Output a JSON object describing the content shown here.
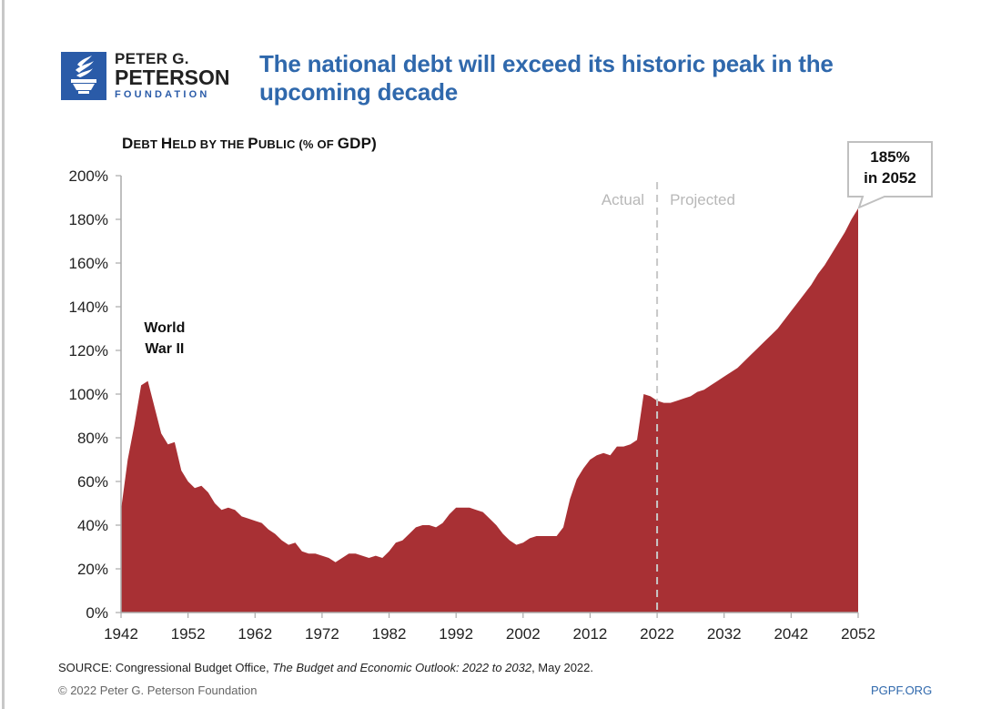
{
  "logo": {
    "line1": "PETER G.",
    "line2": "PETERSON",
    "line3": "FOUNDATION",
    "icon": "torch-icon",
    "color": "#2a5ba8"
  },
  "title": "The national debt will exceed its historic peak in the upcoming decade",
  "subtitle": {
    "parts": [
      {
        "text": "D",
        "small": false
      },
      {
        "text": "EBT ",
        "small": true
      },
      {
        "text": "H",
        "small": false
      },
      {
        "text": "ELD BY THE ",
        "small": true
      },
      {
        "text": "P",
        "small": false
      },
      {
        "text": "UBLIC (% OF ",
        "small": true
      },
      {
        "text": "GDP)",
        "small": false
      }
    ]
  },
  "chart_data": {
    "type": "area",
    "title": "Debt Held by the Public (% of GDP)",
    "xlabel": "",
    "ylabel": "",
    "xlim": [
      1942,
      2052
    ],
    "ylim": [
      0,
      200
    ],
    "xticks": [
      "1942",
      "1952",
      "1962",
      "1972",
      "1982",
      "1992",
      "2002",
      "2012",
      "2022",
      "2032",
      "2042",
      "2052"
    ],
    "yticks": [
      "0%",
      "20%",
      "40%",
      "60%",
      "80%",
      "100%",
      "120%",
      "140%",
      "160%",
      "180%",
      "200%"
    ],
    "grid": false,
    "fill_color": "#a83034",
    "divider": {
      "x": 2022,
      "left_label": "Actual",
      "right_label": "Projected"
    },
    "annotations": [
      {
        "text": "World\nWar II",
        "lines": [
          "World",
          "War II"
        ],
        "x": 1948.5,
        "y": 125
      },
      {
        "text": "185%\nin 2052",
        "lines": [
          "185%",
          "in 2052"
        ],
        "x": 2052,
        "y": 185,
        "style": "callout"
      }
    ],
    "series": [
      {
        "name": "Debt held by the public (% of GDP)",
        "x": [
          1942,
          1943,
          1944,
          1945,
          1946,
          1947,
          1948,
          1949,
          1950,
          1951,
          1952,
          1953,
          1954,
          1955,
          1956,
          1957,
          1958,
          1959,
          1960,
          1961,
          1962,
          1963,
          1964,
          1965,
          1966,
          1967,
          1968,
          1969,
          1970,
          1971,
          1972,
          1973,
          1974,
          1975,
          1976,
          1977,
          1978,
          1979,
          1980,
          1981,
          1982,
          1983,
          1984,
          1985,
          1986,
          1987,
          1988,
          1989,
          1990,
          1991,
          1992,
          1993,
          1994,
          1995,
          1996,
          1997,
          1998,
          1999,
          2000,
          2001,
          2002,
          2003,
          2004,
          2005,
          2006,
          2007,
          2008,
          2009,
          2010,
          2011,
          2012,
          2013,
          2014,
          2015,
          2016,
          2017,
          2018,
          2019,
          2020,
          2021,
          2022,
          2023,
          2024,
          2025,
          2026,
          2027,
          2028,
          2029,
          2030,
          2031,
          2032,
          2033,
          2034,
          2035,
          2036,
          2037,
          2038,
          2039,
          2040,
          2041,
          2042,
          2043,
          2044,
          2045,
          2046,
          2047,
          2048,
          2049,
          2050,
          2051,
          2052
        ],
        "values": [
          47,
          70,
          86,
          104,
          106,
          94,
          82,
          77,
          78,
          65,
          60,
          57,
          58,
          55,
          50,
          47,
          48,
          47,
          44,
          43,
          42,
          41,
          38,
          36,
          33,
          31,
          32,
          28,
          27,
          27,
          26,
          25,
          23,
          25,
          27,
          27,
          26,
          25,
          26,
          25,
          28,
          32,
          33,
          36,
          39,
          40,
          40,
          39,
          41,
          45,
          48,
          48,
          48,
          47,
          46,
          43,
          40,
          36,
          33,
          31,
          32,
          34,
          35,
          35,
          35,
          35,
          39,
          52,
          61,
          66,
          70,
          72,
          73,
          72,
          76,
          76,
          77,
          79,
          100,
          99,
          97,
          96,
          96,
          97,
          98,
          99,
          101,
          102,
          104,
          106,
          108,
          110,
          112,
          115,
          118,
          121,
          124,
          127,
          130,
          134,
          138,
          142,
          146,
          150,
          155,
          159,
          164,
          169,
          174,
          180,
          185
        ]
      }
    ]
  },
  "footer": {
    "source_prefix": "SOURCE: Congressional Budget Office, ",
    "source_title": "The Budget and Economic Outlook: 2022 to 2032",
    "source_suffix": ", May 2022.",
    "copyright": "© 2022 Peter G. Peterson Foundation",
    "link": "PGPF.ORG"
  }
}
